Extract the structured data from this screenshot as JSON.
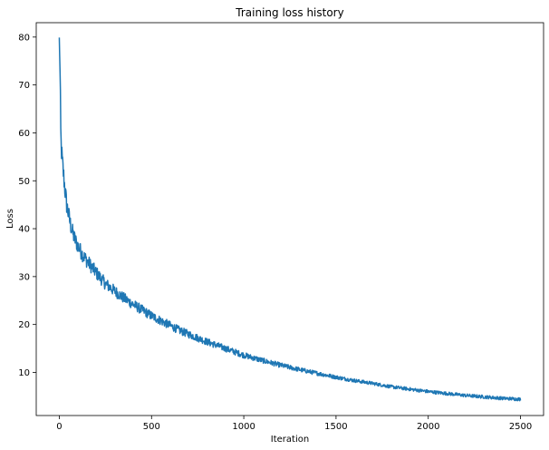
{
  "chart_data": {
    "type": "line",
    "title": "Training loss history",
    "xlabel": "Iteration",
    "ylabel": "Loss",
    "xlim": [
      -125,
      2625
    ],
    "ylim": [
      1,
      83
    ],
    "xticks": [
      0,
      500,
      1000,
      1500,
      2000,
      2500
    ],
    "yticks": [
      10,
      20,
      30,
      40,
      50,
      60,
      70,
      80
    ],
    "grid": false,
    "legend": "none",
    "series": [
      {
        "color": "#1f77b4",
        "x": [
          0,
          2,
          4,
          6,
          8,
          10,
          15,
          20,
          25,
          30,
          40,
          50,
          60,
          70,
          80,
          90,
          100,
          120,
          140,
          160,
          180,
          200,
          250,
          300,
          350,
          400,
          450,
          500,
          550,
          600,
          650,
          700,
          750,
          800,
          850,
          900,
          950,
          1000,
          1100,
          1200,
          1300,
          1400,
          1500,
          1600,
          1700,
          1800,
          1900,
          2000,
          2100,
          2200,
          2300,
          2400,
          2500
        ],
        "y": [
          78.8,
          77.5,
          72.0,
          66.0,
          60.0,
          57.5,
          54.5,
          52.5,
          50.5,
          48.5,
          45.0,
          43.0,
          41.0,
          39.5,
          38.2,
          37.3,
          36.5,
          35.0,
          33.8,
          32.8,
          31.8,
          30.8,
          28.5,
          27.0,
          25.5,
          24.2,
          23.0,
          21.8,
          20.8,
          19.8,
          18.8,
          18.0,
          17.2,
          16.4,
          15.7,
          15.0,
          14.3,
          13.6,
          12.5,
          11.5,
          10.6,
          9.8,
          9.0,
          8.3,
          7.7,
          7.0,
          6.5,
          6.0,
          5.6,
          5.2,
          4.9,
          4.6,
          4.4
        ]
      }
    ]
  }
}
